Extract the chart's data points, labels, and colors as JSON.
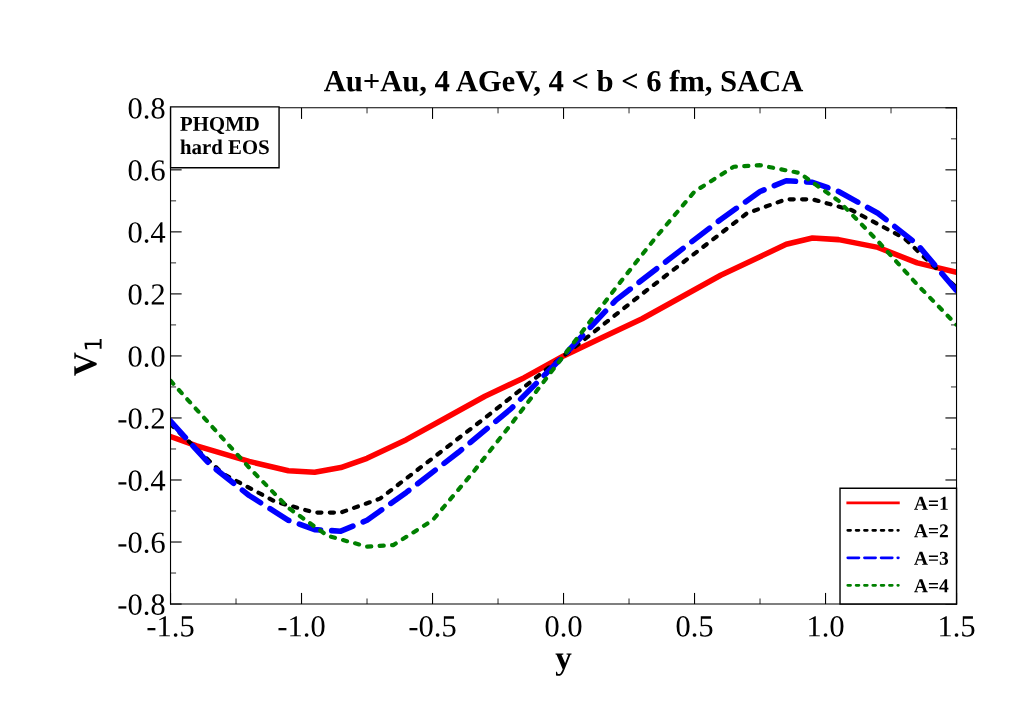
{
  "chart_data": {
    "type": "line",
    "title": "Au+Au, 4 AGeV, 4 < b < 6 fm, SACA",
    "xlabel": "y",
    "ylabel": "V$_{1}$",
    "annotations": [
      "PHQMD\nhard EOS"
    ],
    "xlim": [
      -1.5,
      1.5
    ],
    "xticks": [
      {
        "value": -1.5,
        "label": "-1.5"
      },
      {
        "value": -1.0,
        "label": "-1.0"
      },
      {
        "value": -0.5,
        "label": "-0.5"
      },
      {
        "value": 0.0,
        "label": "0.0"
      },
      {
        "value": 0.5,
        "label": "0.5"
      },
      {
        "value": 1.0,
        "label": "1.0"
      },
      {
        "value": 1.5,
        "label": "1.5"
      }
    ],
    "ylim": [
      -0.8,
      0.8
    ],
    "yticks": [
      {
        "value": -0.8,
        "label": "-0.8"
      },
      {
        "value": -0.6,
        "label": "-0.6"
      },
      {
        "value": -0.4,
        "label": "-0.4"
      },
      {
        "value": -0.2,
        "label": "-0.2"
      },
      {
        "value": 0.0,
        "label": "0.0"
      },
      {
        "value": 0.2,
        "label": "0.2"
      },
      {
        "value": 0.4,
        "label": "0.4"
      },
      {
        "value": 0.6,
        "label": "0.6"
      },
      {
        "value": 0.8,
        "label": "0.8"
      }
    ],
    "grid": false,
    "legend": "bottom right",
    "series": [
      {
        "name": "A=1",
        "color": "#ff0000",
        "line_style": "solid",
        "x": [
          -1.5,
          -1.4,
          -1.2,
          -1.05,
          -0.95,
          -0.85,
          -0.75,
          -0.6,
          -0.45,
          -0.3,
          -0.15,
          0,
          0.15,
          0.3,
          0.45,
          0.6,
          0.75,
          0.85,
          0.95,
          1.05,
          1.2,
          1.35,
          1.5
        ],
        "values": [
          -0.26,
          -0.29,
          -0.34,
          -0.37,
          -0.375,
          -0.36,
          -0.33,
          -0.27,
          -0.2,
          -0.13,
          -0.07,
          0.0,
          0.06,
          0.12,
          0.19,
          0.26,
          0.32,
          0.36,
          0.38,
          0.375,
          0.35,
          0.3,
          0.27
        ]
      },
      {
        "name": "A=2",
        "color": "#000000",
        "line_style": "dotted",
        "x": [
          -1.5,
          -1.3,
          -1.1,
          -0.95,
          -0.85,
          -0.7,
          -0.5,
          -0.3,
          -0.15,
          0,
          0.15,
          0.3,
          0.5,
          0.7,
          0.85,
          0.95,
          1.1,
          1.3,
          1.5
        ],
        "values": [
          -0.22,
          -0.38,
          -0.47,
          -0.505,
          -0.505,
          -0.46,
          -0.33,
          -0.2,
          -0.1,
          0.0,
          0.1,
          0.2,
          0.33,
          0.46,
          0.505,
          0.505,
          0.47,
          0.38,
          0.22
        ]
      },
      {
        "name": "A=3",
        "color": "#0000ff",
        "line_style": "dashed",
        "x": [
          -1.5,
          -1.35,
          -1.2,
          -1.05,
          -0.95,
          -0.85,
          -0.75,
          -0.6,
          -0.4,
          -0.2,
          0,
          0.2,
          0.4,
          0.6,
          0.75,
          0.85,
          0.95,
          1.05,
          1.2,
          1.35,
          1.5
        ],
        "values": [
          -0.21,
          -0.35,
          -0.45,
          -0.53,
          -0.56,
          -0.565,
          -0.53,
          -0.44,
          -0.31,
          -0.17,
          0.0,
          0.18,
          0.31,
          0.44,
          0.53,
          0.565,
          0.56,
          0.53,
          0.46,
          0.36,
          0.21
        ]
      },
      {
        "name": "A=4",
        "color": "#008000",
        "line_style": "dotted",
        "x": [
          -1.5,
          -1.35,
          -1.2,
          -1.05,
          -0.9,
          -0.75,
          -0.65,
          -0.5,
          -0.35,
          -0.2,
          0,
          0.2,
          0.35,
          0.5,
          0.65,
          0.75,
          0.9,
          1.05,
          1.2,
          1.35,
          1.5
        ],
        "values": [
          -0.08,
          -0.22,
          -0.36,
          -0.49,
          -0.58,
          -0.615,
          -0.61,
          -0.53,
          -0.38,
          -0.22,
          0.0,
          0.22,
          0.38,
          0.53,
          0.61,
          0.615,
          0.59,
          0.5,
          0.37,
          0.23,
          0.1
        ]
      }
    ]
  }
}
